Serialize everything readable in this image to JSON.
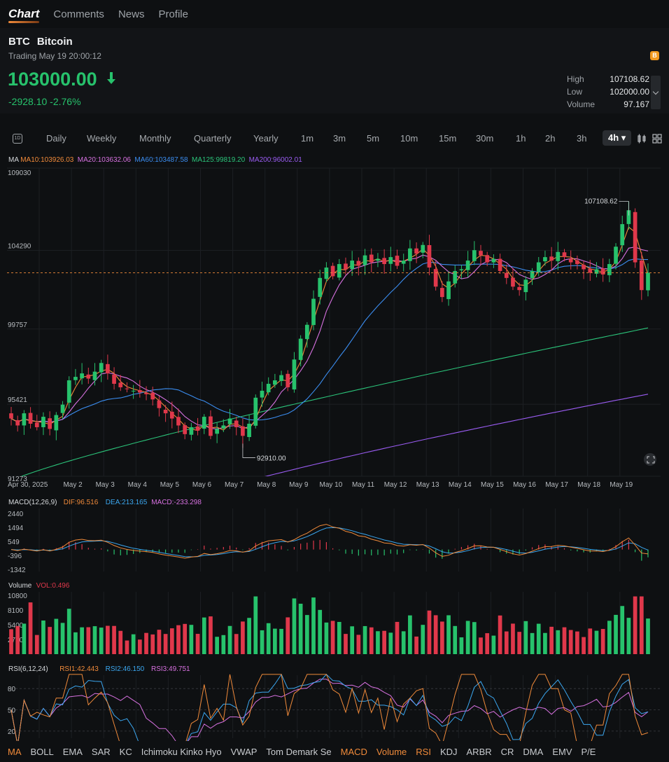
{
  "nav": {
    "tabs": [
      {
        "label": "Chart",
        "active": true
      },
      {
        "label": "Comments",
        "active": false
      },
      {
        "label": "News",
        "active": false
      },
      {
        "label": "Profile",
        "active": false
      }
    ]
  },
  "header": {
    "symbol": "BTC",
    "name": "Bitcoin",
    "status": "Trading May 19 20:00:12",
    "badge": "B",
    "price": "103000.00",
    "change": "-2928.10 -2.76%",
    "high_label": "High",
    "high": "107108.62",
    "low_label": "Low",
    "low": "102000.00",
    "volume_label": "Volume",
    "volume": "97.167",
    "colors": {
      "up": "#27c26c",
      "down": "#e0384b",
      "accent": "#f08a3a"
    }
  },
  "periods": {
    "icon_label": "1D",
    "items": [
      "Daily",
      "Weekly",
      "Monthly",
      "Quarterly",
      "Yearly",
      "1m",
      "3m",
      "5m",
      "10m",
      "15m",
      "30m",
      "1h",
      "2h",
      "3h"
    ],
    "active": "4h ▾"
  },
  "main_legend": {
    "title": "MA",
    "items": [
      {
        "label": "MA10:103926.03",
        "color": "#f08a3a"
      },
      {
        "label": "MA20:103632.06",
        "color": "#d771e0"
      },
      {
        "label": "MA60:103487.58",
        "color": "#3b8df0"
      },
      {
        "label": "MA125:99819.20",
        "color": "#2bc47a"
      },
      {
        "label": "MA200:96002.01",
        "color": "#9a5cf2"
      }
    ]
  },
  "macd_legend": {
    "title": "MACD(12,26,9)",
    "items": [
      {
        "label": "DIF:96.516",
        "color": "#f08a3a"
      },
      {
        "label": "DEA:213.165",
        "color": "#3ba7f0"
      },
      {
        "label": "MACD:-233.298",
        "color": "#d771e0"
      }
    ]
  },
  "vol_legend": {
    "title": "Volume",
    "items": [
      {
        "label": "VOL:0.496",
        "color": "#e0384b"
      }
    ]
  },
  "rsi_legend": {
    "title": "RSI(6,12,24)",
    "items": [
      {
        "label": "RSI1:42.443",
        "color": "#f08a3a"
      },
      {
        "label": "RSI2:46.150",
        "color": "#3ba7f0"
      },
      {
        "label": "RSI3:49.751",
        "color": "#d771e0"
      }
    ]
  },
  "chart_data": {
    "type": "candlestick",
    "interval": "4h",
    "price_axis": {
      "ticks": [
        "109030",
        "104290",
        "99757",
        "95421",
        "91273"
      ],
      "ylim": [
        91273,
        109030
      ]
    },
    "x_ticks": [
      "Apr 30, 2025",
      "May 2",
      "May 3",
      "May 4",
      "May 5",
      "May 6",
      "May 7",
      "May 8",
      "May 9",
      "May 10",
      "May 11",
      "May 12",
      "May 13",
      "May 14",
      "May 15",
      "May 16",
      "May 17",
      "May 18",
      "May 19"
    ],
    "high_marker": "107108.62",
    "low_marker": "92910.00",
    "last_price": 103000.0,
    "close_series": [
      94600,
      94200,
      94900,
      94300,
      94100,
      94700,
      94000,
      94800,
      95400,
      96800,
      97000,
      97200,
      96900,
      97300,
      97800,
      97200,
      96600,
      96400,
      96300,
      96200,
      96100,
      96000,
      95700,
      95200,
      94900,
      94600,
      94200,
      93700,
      94100,
      93900,
      94700,
      93600,
      94000,
      94200,
      94600,
      94100,
      93600,
      94300,
      95800,
      96200,
      96600,
      96800,
      97100,
      96400,
      98000,
      99200,
      100000,
      101500,
      102700,
      103300,
      102800,
      103500,
      103200,
      103700,
      103400,
      104000,
      103600,
      103800,
      103500,
      103900,
      103400,
      103700,
      104400,
      104100,
      104600,
      103300,
      102200,
      101600,
      102500,
      103100,
      103200,
      103700,
      104300,
      104000,
      103600,
      103800,
      103100,
      102700,
      102200,
      102000,
      102600,
      103100,
      103600,
      103900,
      103700,
      104200,
      103900,
      103600,
      103500,
      103200,
      103000,
      103200,
      102900,
      103500,
      104500,
      105800,
      106600,
      103600,
      102000,
      103000
    ],
    "indicators": {
      "MA10": 103926.03,
      "MA20": 103632.06,
      "MA60": 103487.58,
      "MA125": 99819.2,
      "MA200": 96002.01
    },
    "macd": {
      "ticks": [
        "2440",
        "1494",
        "549",
        "-396",
        "-1342"
      ],
      "DIF": 96.516,
      "DEA": 213.165,
      "MACD": -233.298
    },
    "volume": {
      "ticks": [
        "10800",
        "8100",
        "5400",
        "2700"
      ],
      "VOL": 0.496
    },
    "rsi": {
      "ticks": [
        "80",
        "50",
        "20"
      ],
      "RSI1": 42.443,
      "RSI2": 46.15,
      "RSI3": 49.751
    }
  },
  "indicator_bar": [
    {
      "label": "MA",
      "on": true
    },
    {
      "label": "BOLL",
      "on": false
    },
    {
      "label": "EMA",
      "on": false
    },
    {
      "label": "SAR",
      "on": false
    },
    {
      "label": "KC",
      "on": false
    },
    {
      "label": "Ichimoku Kinko Hyo",
      "on": false
    },
    {
      "label": "VWAP",
      "on": false
    },
    {
      "label": "Tom Demark Se",
      "on": false
    },
    {
      "label": "MACD",
      "on": true
    },
    {
      "label": "Volume",
      "on": true
    },
    {
      "label": "RSI",
      "on": true
    },
    {
      "label": "KDJ",
      "on": false
    },
    {
      "label": "ARBR",
      "on": false
    },
    {
      "label": "CR",
      "on": false
    },
    {
      "label": "DMA",
      "on": false
    },
    {
      "label": "EMV",
      "on": false
    },
    {
      "label": "P/E",
      "on": false
    }
  ]
}
